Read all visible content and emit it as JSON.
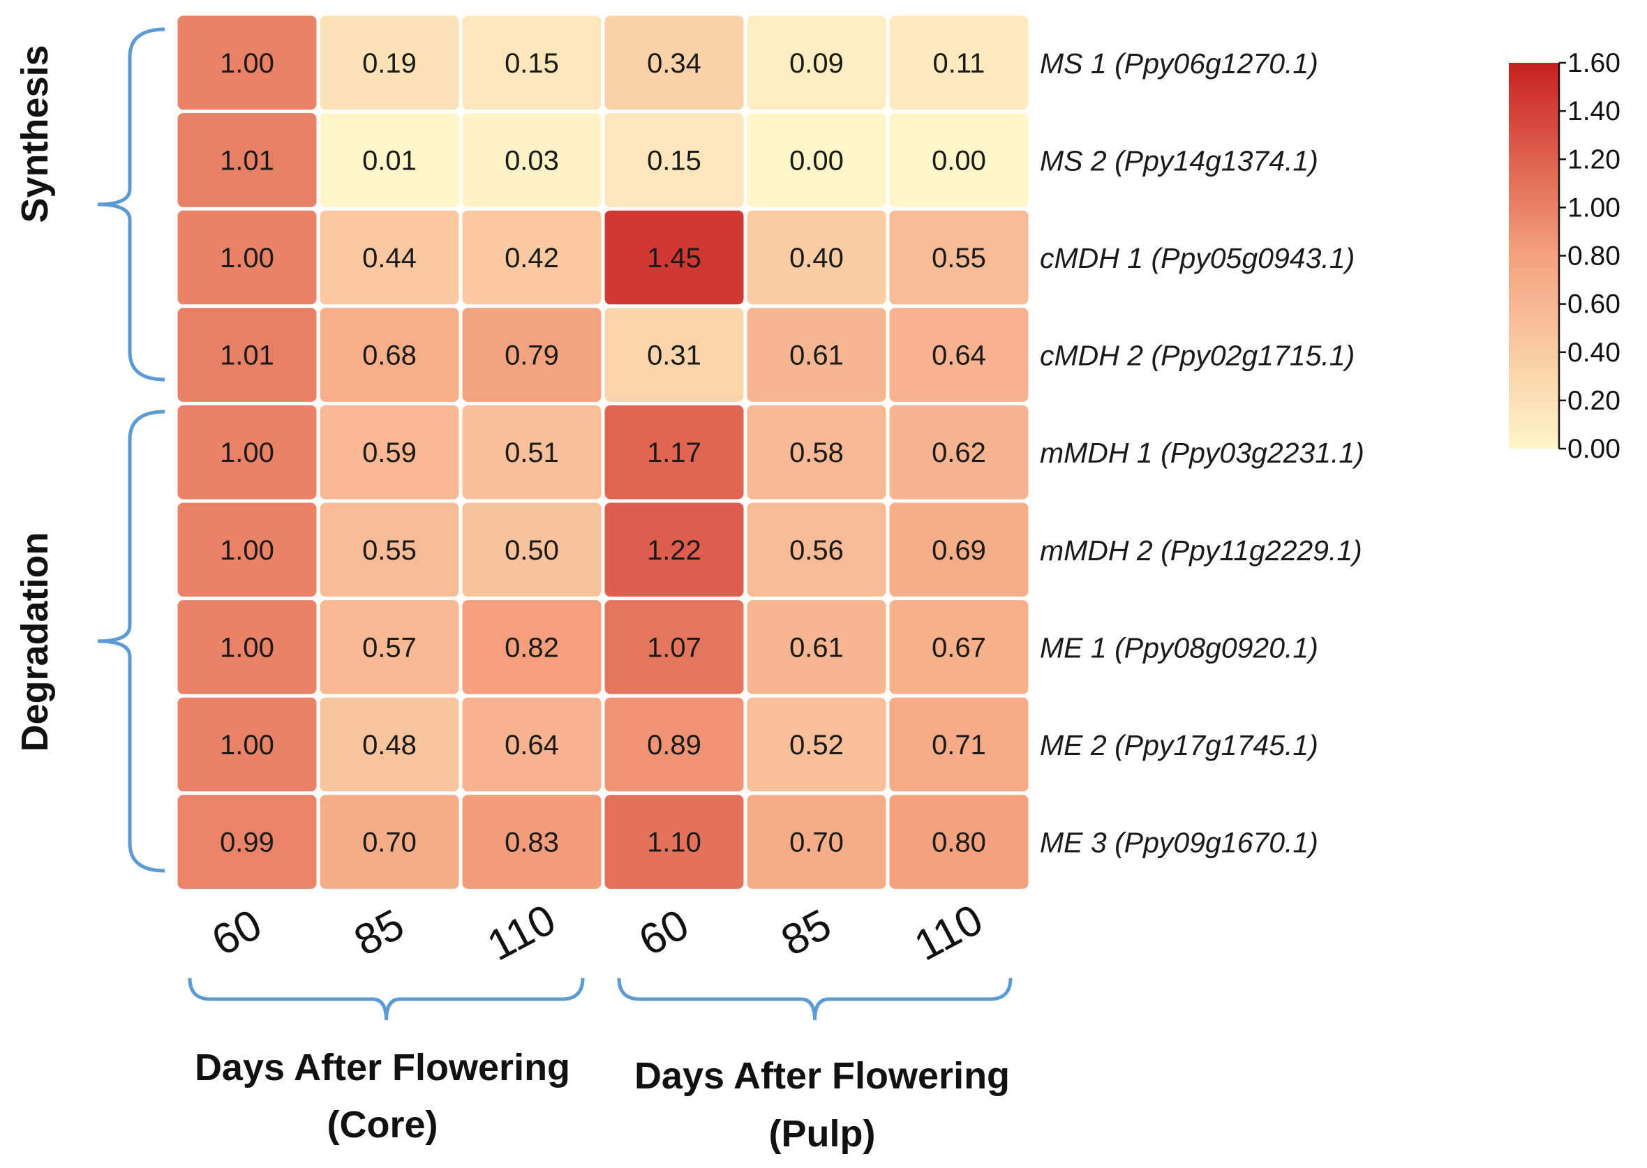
{
  "chart_data": {
    "type": "heatmap",
    "rows": [
      "MS 1 (Ppy06g1270.1)",
      "MS 2 (Ppy14g1374.1)",
      "cMDH 1 (Ppy05g0943.1)",
      "cMDH 2 (Ppy02g1715.1)",
      "mMDH 1 (Ppy03g2231.1)",
      "mMDH 2 (Ppy11g2229.1)",
      "ME 1 (Ppy08g0920.1)",
      "ME 2 (Ppy17g1745.1)",
      "ME 3 (Ppy09g1670.1)"
    ],
    "columns": [
      "60",
      "85",
      "110",
      "60",
      "85",
      "110"
    ],
    "values": [
      [
        "1.00",
        "0.19",
        "0.15",
        "0.34",
        "0.09",
        "0.11"
      ],
      [
        "1.01",
        "0.01",
        "0.03",
        "0.15",
        "0.00",
        "0.00"
      ],
      [
        "1.00",
        "0.44",
        "0.42",
        "1.45",
        "0.40",
        "0.55"
      ],
      [
        "1.01",
        "0.68",
        "0.79",
        "0.31",
        "0.61",
        "0.64"
      ],
      [
        "1.00",
        "0.59",
        "0.51",
        "1.17",
        "0.58",
        "0.62"
      ],
      [
        "1.00",
        "0.55",
        "0.50",
        "1.22",
        "0.56",
        "0.69"
      ],
      [
        "1.00",
        "0.57",
        "0.82",
        "1.07",
        "0.61",
        "0.67"
      ],
      [
        "1.00",
        "0.48",
        "0.64",
        "0.89",
        "0.52",
        "0.71"
      ],
      [
        "0.99",
        "0.70",
        "0.83",
        "1.10",
        "0.70",
        "0.80"
      ]
    ],
    "row_groups": [
      {
        "label": "Synthesis",
        "from_row": 0,
        "to_row": 3
      },
      {
        "label": "Degradation",
        "from_row": 4,
        "to_row": 8
      }
    ],
    "column_groups": [
      {
        "label_line1": "Days After Flowering",
        "label_line2": "(Core)",
        "from_col": 0,
        "to_col": 2
      },
      {
        "label_line1": "Days After Flowering",
        "label_line2": "(Pulp)",
        "from_col": 3,
        "to_col": 5
      }
    ],
    "colorbar": {
      "min": 0,
      "max": 1.6,
      "ticks": [
        "0.00",
        "0.20",
        "0.40",
        "0.60",
        "0.80",
        "1.00",
        "1.20",
        "1.40",
        "1.60"
      ],
      "color_low": "#fef6c9",
      "color_mid": "#f4a27e",
      "color_high": "#c8211f"
    },
    "bracket_color": "#5b9bd5"
  }
}
